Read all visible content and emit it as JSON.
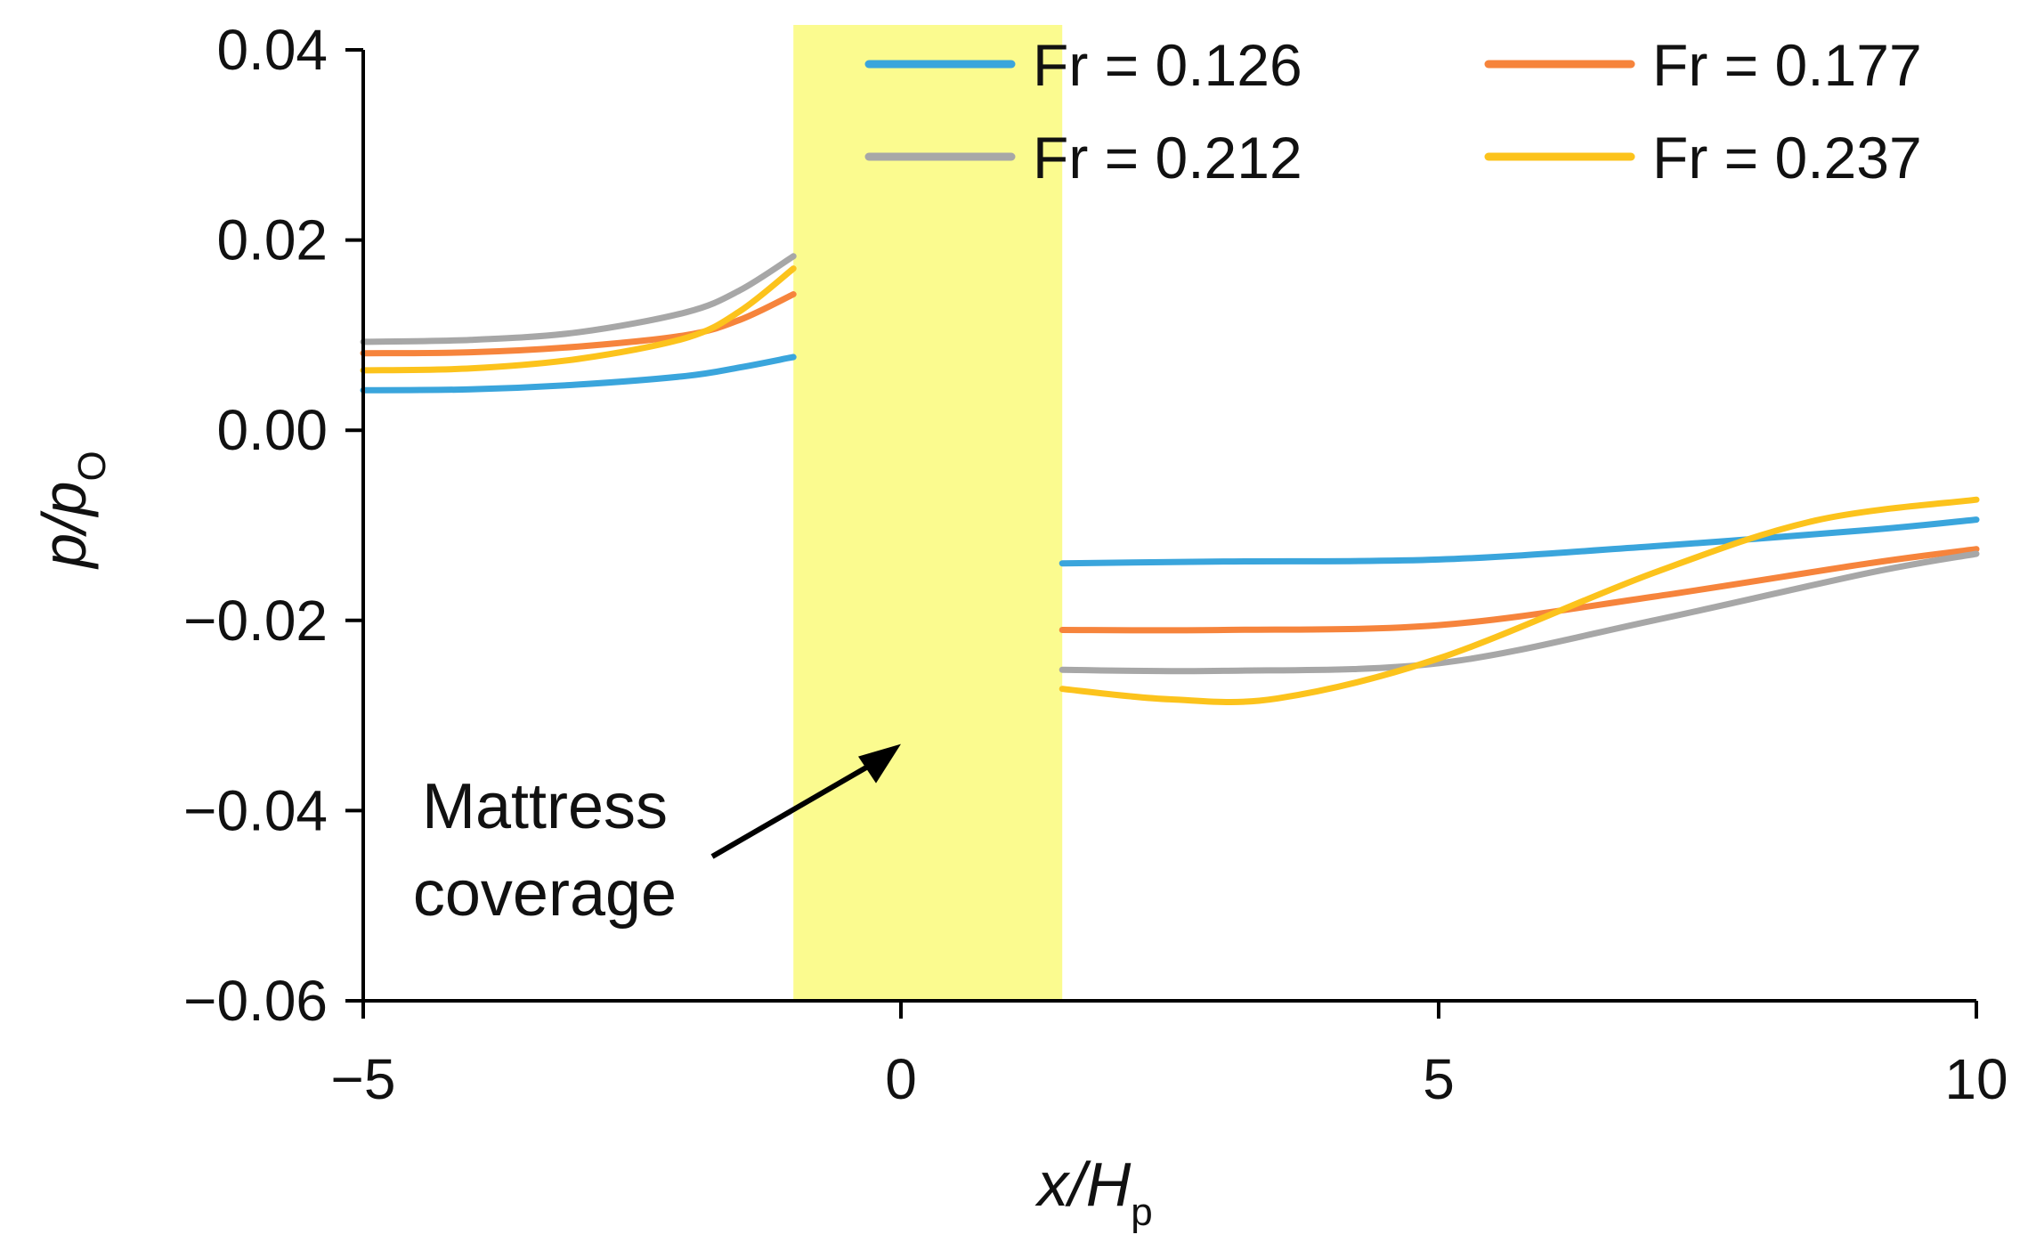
{
  "chart_data": {
    "type": "line",
    "xlabel_main": "x/H",
    "xlabel_sub": "p",
    "ylabel_main": "p/p",
    "ylabel_sub": "O",
    "xlim": [
      -5,
      10
    ],
    "ylim": [
      -0.06,
      0.04
    ],
    "x_ticks": [
      -5,
      0,
      5,
      10
    ],
    "x_tick_labels": [
      "−5",
      "0",
      "5",
      "10"
    ],
    "y_ticks": [
      0.04,
      0.02,
      0.0,
      -0.02,
      -0.04,
      -0.06
    ],
    "y_tick_labels": [
      "0.04",
      "0.02",
      "0.00",
      "−0.02",
      "−0.04",
      "−0.06"
    ],
    "highlight_region": {
      "x_start": -1.0,
      "x_end": 1.5,
      "color": "#fbfb8f"
    },
    "annotation": {
      "line1": "Mattress",
      "line2": "coverage",
      "arrow_target": [
        0,
        -0.033
      ]
    },
    "legend": {
      "position": "top-right",
      "columns": 2
    },
    "series": [
      {
        "name": "Fr = 0.126",
        "color": "#3aa5dc",
        "upstream": {
          "x": [
            -5,
            -4,
            -3,
            -2,
            -1.5,
            -1.0
          ],
          "y": [
            0.0042,
            0.0043,
            0.0048,
            0.0057,
            0.0066,
            0.0077
          ]
        },
        "downstream": {
          "x": [
            1.5,
            3,
            5,
            7,
            9,
            10
          ],
          "y": [
            -0.014,
            -0.0138,
            -0.0136,
            -0.0122,
            -0.0105,
            -0.0094
          ]
        }
      },
      {
        "name": "Fr = 0.177",
        "color": "#f6843c",
        "upstream": {
          "x": [
            -5,
            -4,
            -3,
            -2,
            -1.5,
            -1.0
          ],
          "y": [
            0.0081,
            0.0082,
            0.0088,
            0.01,
            0.0116,
            0.0143
          ]
        },
        "downstream": {
          "x": [
            1.5,
            3,
            5,
            7,
            9,
            10
          ],
          "y": [
            -0.021,
            -0.021,
            -0.0205,
            -0.0175,
            -0.014,
            -0.0125
          ]
        }
      },
      {
        "name": "Fr = 0.212",
        "color": "#a7a7a7",
        "upstream": {
          "x": [
            -5,
            -4,
            -3,
            -2,
            -1.5,
            -1.0
          ],
          "y": [
            0.0093,
            0.0095,
            0.0103,
            0.0124,
            0.0147,
            0.0183
          ]
        },
        "downstream": {
          "x": [
            1.5,
            3,
            5,
            7,
            9,
            10
          ],
          "y": [
            -0.0252,
            -0.0253,
            -0.0245,
            -0.02,
            -0.015,
            -0.013
          ]
        }
      },
      {
        "name": "Fr = 0.237",
        "color": "#fcc31c",
        "upstream": {
          "x": [
            -5,
            -4,
            -3,
            -2,
            -1.5,
            -1.0
          ],
          "y": [
            0.0063,
            0.0065,
            0.0075,
            0.0097,
            0.0125,
            0.017
          ]
        },
        "downstream": {
          "x": [
            1.5,
            2.5,
            3.5,
            5,
            7,
            8.5,
            10
          ],
          "y": [
            -0.0272,
            -0.0283,
            -0.0282,
            -0.024,
            -0.015,
            -0.0095,
            -0.0073
          ]
        }
      }
    ]
  }
}
